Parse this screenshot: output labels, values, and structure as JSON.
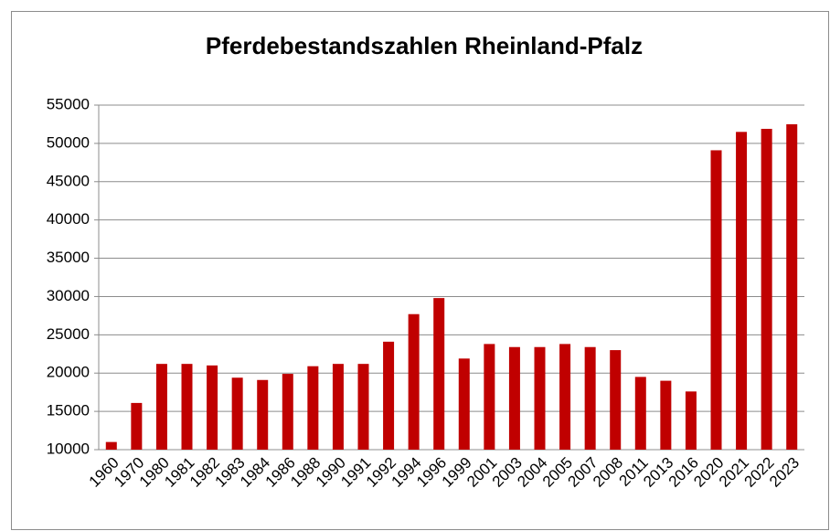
{
  "chart_data": {
    "type": "bar",
    "title": "Pferdebestandszahlen Rheinland-Pfalz",
    "categories": [
      "1960",
      "1970",
      "1980",
      "1981",
      "1982",
      "1983",
      "1984",
      "1986",
      "1988",
      "1990",
      "1991",
      "1992",
      "1994",
      "1996",
      "1999",
      "2001",
      "2003",
      "2004",
      "2005",
      "2007",
      "2008",
      "2011",
      "2013",
      "2016",
      "2020",
      "2021",
      "2022",
      "2023"
    ],
    "values": [
      11000,
      16100,
      21200,
      21200,
      21000,
      19400,
      19100,
      19900,
      20900,
      21200,
      21200,
      24100,
      27700,
      29800,
      21900,
      23800,
      23400,
      23400,
      23800,
      23400,
      23000,
      19500,
      19000,
      17600,
      49100,
      51500,
      51900,
      52500
    ],
    "color": "#c00000",
    "ylim": [
      10000,
      55000
    ],
    "yticks": [
      10000,
      15000,
      20000,
      25000,
      30000,
      35000,
      40000,
      45000,
      50000,
      55000
    ],
    "grid": true
  }
}
